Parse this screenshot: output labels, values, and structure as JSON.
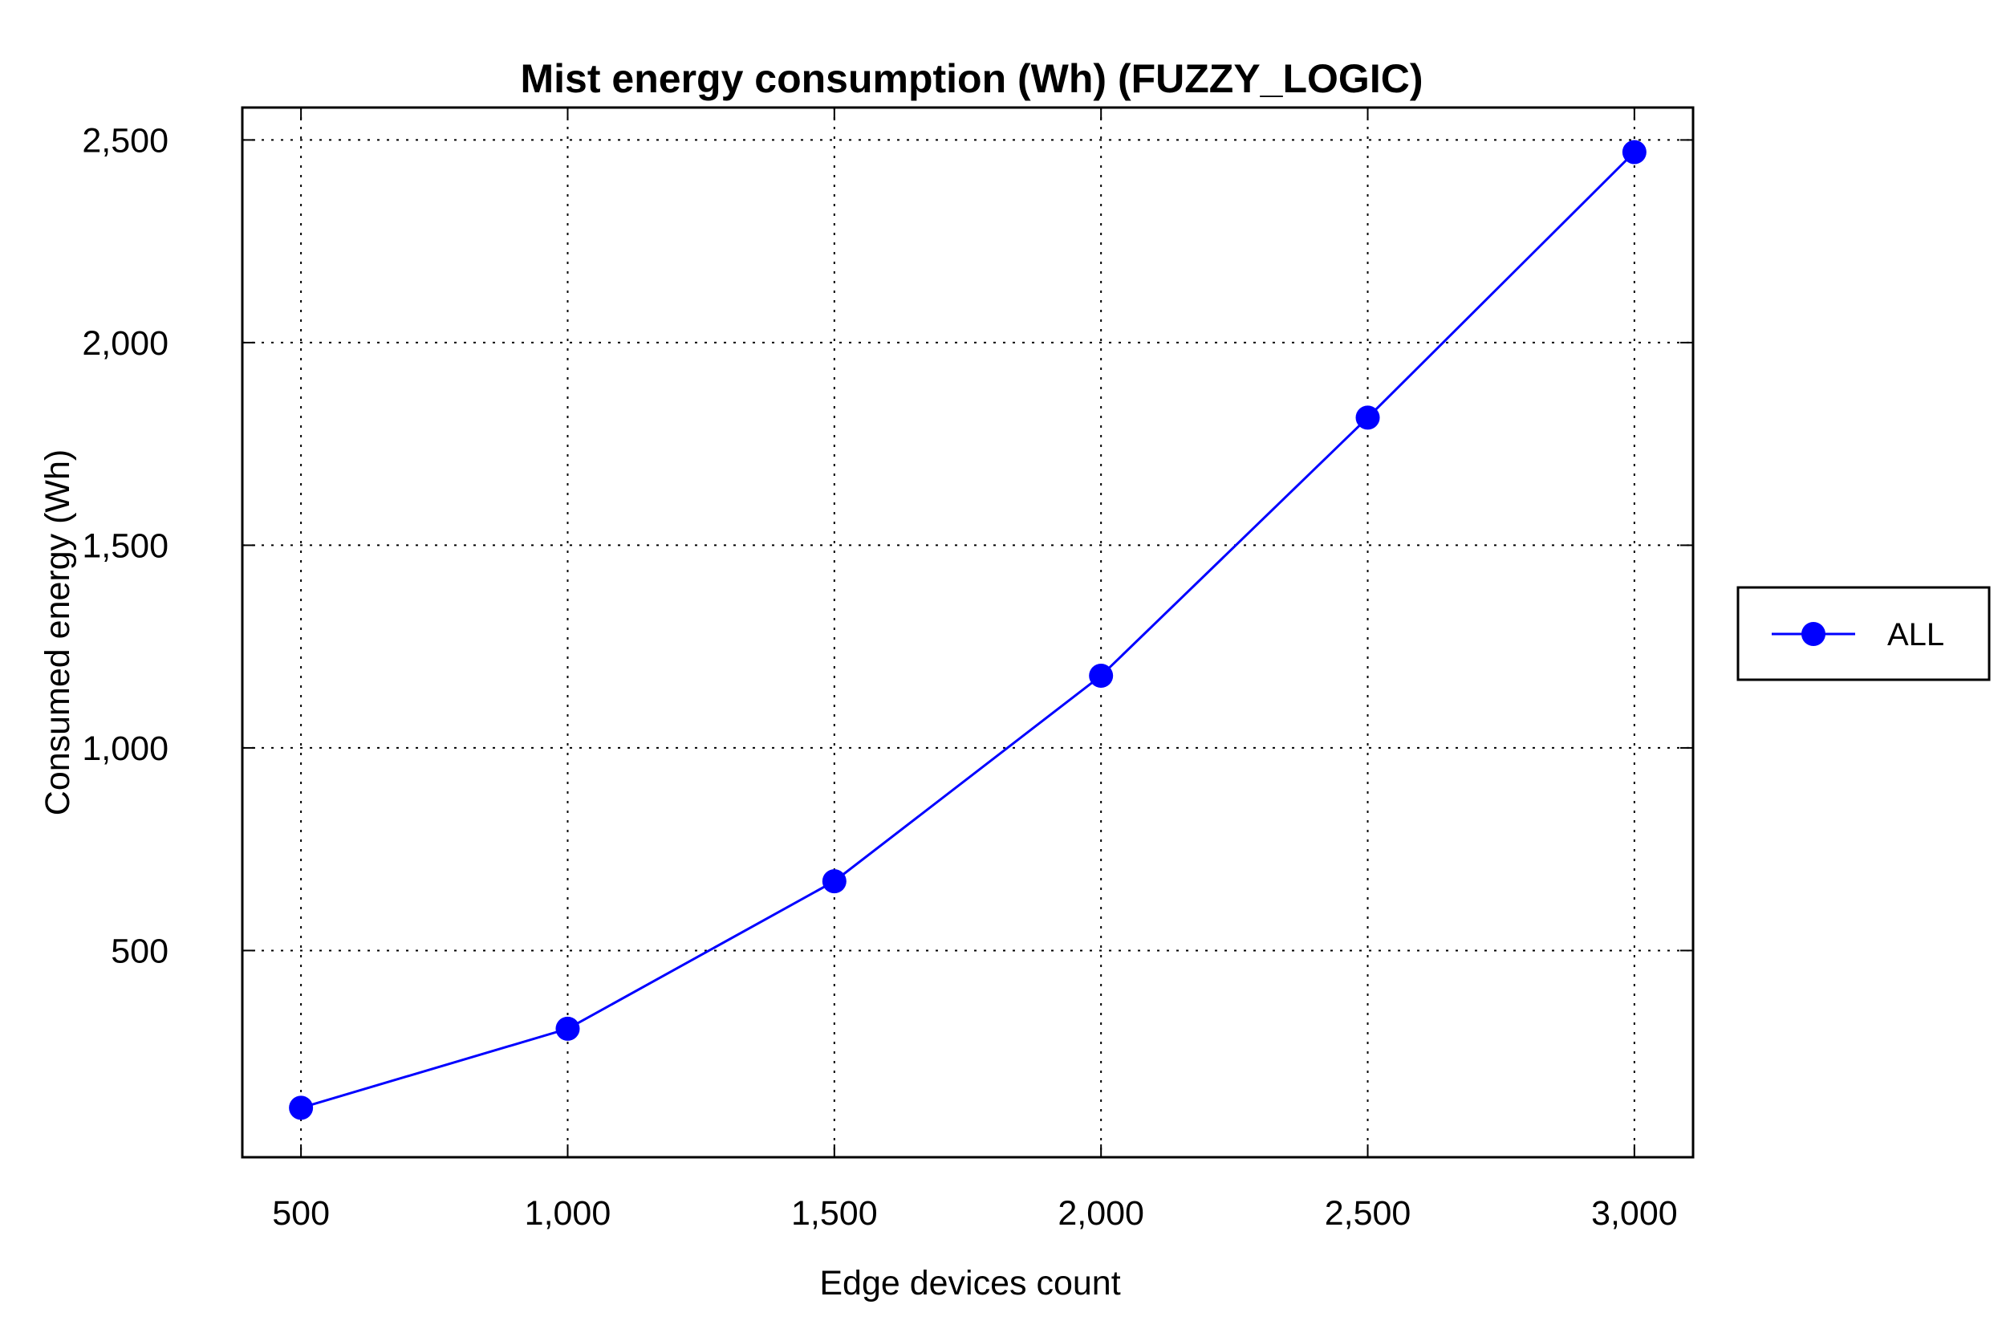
{
  "chart_data": {
    "type": "line",
    "title": "Mist energy consumption (Wh) (FUZZY_LOGIC)",
    "xlabel": "Edge devices count",
    "ylabel": "Consumed energy (Wh)",
    "x": [
      500,
      1000,
      1500,
      2000,
      2500,
      3000
    ],
    "x_tick_labels": [
      "500",
      "1,000",
      "1,500",
      "2,000",
      "2,500",
      "3,000"
    ],
    "y_tick_values": [
      500,
      1000,
      1500,
      2000,
      2500
    ],
    "y_tick_labels": [
      "500",
      "1,000",
      "1,500",
      "2,000",
      "2,500"
    ],
    "xlim": [
      390,
      3110
    ],
    "ylim": [
      -10,
      2580
    ],
    "grid": true,
    "legend_position": "right",
    "series": [
      {
        "name": "ALL",
        "color": "#0000ff",
        "marker": "circle",
        "values": [
          112,
          307,
          671,
          1178,
          1815,
          2470
        ]
      }
    ]
  }
}
